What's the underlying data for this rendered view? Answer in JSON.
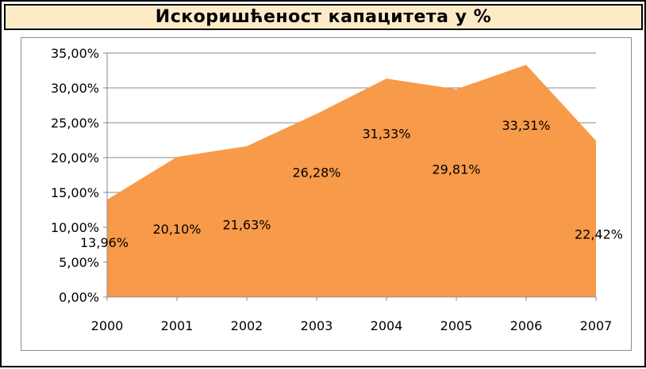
{
  "chart_data": {
    "type": "area",
    "title": "Искоришћеност капацитета у %",
    "categories": [
      "2000",
      "2001",
      "2002",
      "2003",
      "2004",
      "2005",
      "2006",
      "2007"
    ],
    "values": [
      13.96,
      20.1,
      21.63,
      26.28,
      31.33,
      29.81,
      33.31,
      22.42
    ],
    "data_labels": [
      "13,96%",
      "20,10%",
      "21,63%",
      "26,28%",
      "31,33%",
      "29,81%",
      "33,31%",
      "22,42%"
    ],
    "yticks": [
      0,
      5,
      10,
      15,
      20,
      25,
      30,
      35
    ],
    "ytick_labels": [
      "0,00%",
      "5,00%",
      "10,00%",
      "15,00%",
      "20,00%",
      "25,00%",
      "30,00%",
      "35,00%"
    ],
    "ylim": [
      0,
      35
    ],
    "xlabel": "",
    "ylabel": "",
    "grid": true,
    "legend": "none",
    "colors": {
      "area": "#f79a4a",
      "grid": "#888888",
      "axis": "#888888",
      "title_bg": "#fdebc8"
    }
  }
}
